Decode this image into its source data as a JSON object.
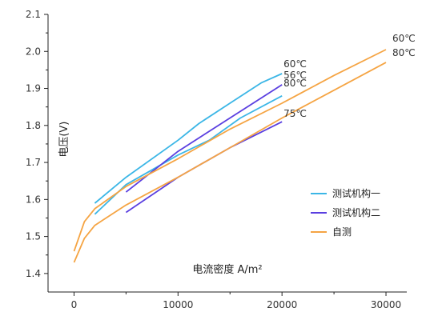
{
  "chart_data": {
    "type": "line",
    "title": "",
    "xlabel": "电流密度 A/m²",
    "ylabel": "电压(V)",
    "xlim": [
      -2500,
      32000
    ],
    "ylim": [
      1.35,
      2.1
    ],
    "xticks": [
      0,
      10000,
      20000,
      30000
    ],
    "xtick_labels": [
      "0",
      "10000",
      "20000",
      "30000"
    ],
    "yticks": [
      1.4,
      1.5,
      1.6,
      1.7,
      1.8,
      1.9,
      2.0,
      2.1
    ],
    "ytick_labels": [
      "1.4",
      "1.5",
      "1.6",
      "1.7",
      "1.8",
      "1.9",
      "2.0",
      "2.1"
    ],
    "grid": false,
    "legend_position": "lower-right",
    "series": [
      {
        "name": "测试机构一",
        "color": "#3bb6e6",
        "group": "测试机构一",
        "label": "60℃",
        "x": [
          2000,
          5000,
          10000,
          12000,
          15000,
          18000,
          20000
        ],
        "y": [
          1.59,
          1.66,
          1.76,
          1.805,
          1.86,
          1.915,
          1.94
        ]
      },
      {
        "name": "测试机构一",
        "color": "#3bb6e6",
        "group": "测试机构一",
        "label": "80℃",
        "x": [
          2000,
          5000,
          10000,
          13000,
          16000,
          20000
        ],
        "y": [
          1.56,
          1.64,
          1.72,
          1.76,
          1.82,
          1.88
        ]
      },
      {
        "name": "测试机构二",
        "color": "#5a3fe0",
        "group": "测试机构二",
        "label": "56℃",
        "x": [
          5000,
          10000,
          15000,
          20000
        ],
        "y": [
          1.62,
          1.73,
          1.82,
          1.91
        ]
      },
      {
        "name": "测试机构二",
        "color": "#5a3fe0",
        "group": "测试机构二",
        "label": "75℃",
        "x": [
          5000,
          10000,
          15000,
          20000
        ],
        "y": [
          1.565,
          1.66,
          1.74,
          1.81
        ]
      },
      {
        "name": "自测",
        "color": "#f5a443",
        "group": "自测",
        "label": "60℃",
        "x": [
          0,
          1000,
          2000,
          5000,
          10000,
          15000,
          20000,
          25000,
          30000
        ],
        "y": [
          1.46,
          1.54,
          1.575,
          1.635,
          1.71,
          1.79,
          1.86,
          1.935,
          2.005
        ]
      },
      {
        "name": "自测",
        "color": "#f5a443",
        "group": "自测",
        "label": "80℃",
        "x": [
          0,
          1000,
          2000,
          5000,
          10000,
          15000,
          20000,
          25000,
          30000
        ],
        "y": [
          1.43,
          1.495,
          1.53,
          1.585,
          1.66,
          1.74,
          1.82,
          1.895,
          1.97
        ]
      }
    ],
    "legend": [
      {
        "label": "测试机构一",
        "color": "#3bb6e6"
      },
      {
        "label": "测试机构二",
        "color": "#5a3fe0"
      },
      {
        "label": "自测",
        "color": "#f5a443"
      }
    ]
  }
}
